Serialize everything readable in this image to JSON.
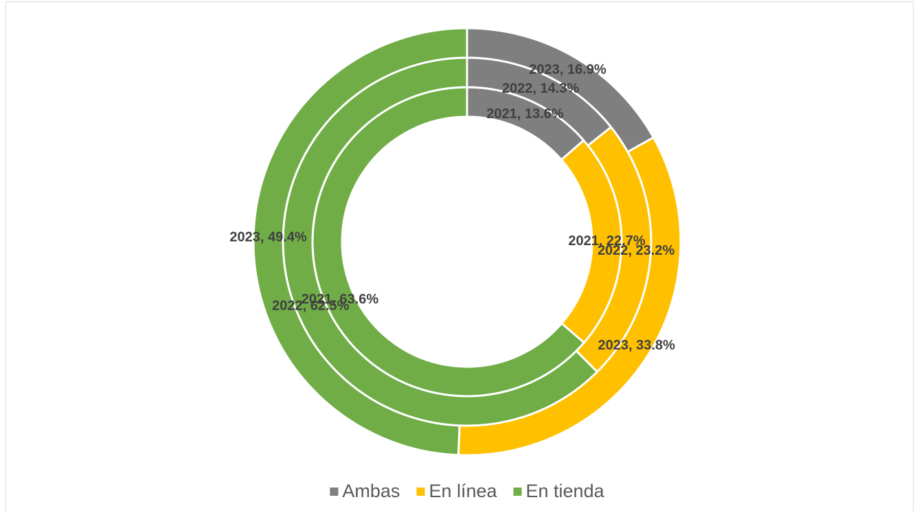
{
  "chart_data": {
    "type": "donut",
    "categories": [
      "2021",
      "2022",
      "2023"
    ],
    "series": [
      {
        "name": "Ambas",
        "color": "#7f7f7f",
        "values": [
          13.6,
          14.3,
          16.9
        ],
        "value_labels": [
          "2021, 13.6%",
          "2022, 14.3%",
          "2023, 16.9%"
        ]
      },
      {
        "name": "En línea",
        "color": "#ffc000",
        "values": [
          22.7,
          23.2,
          33.8
        ],
        "value_labels": [
          "2021, 22.7%",
          "2022, 23.2%",
          "2023, 33.8%"
        ]
      },
      {
        "name": "En tienda",
        "color": "#70ad47",
        "values": [
          63.6,
          62.5,
          49.4
        ],
        "value_labels": [
          "2021, 63.6%",
          "2022, 62.5%",
          "2023, 49.4%"
        ]
      }
    ],
    "legend": "bottom"
  }
}
